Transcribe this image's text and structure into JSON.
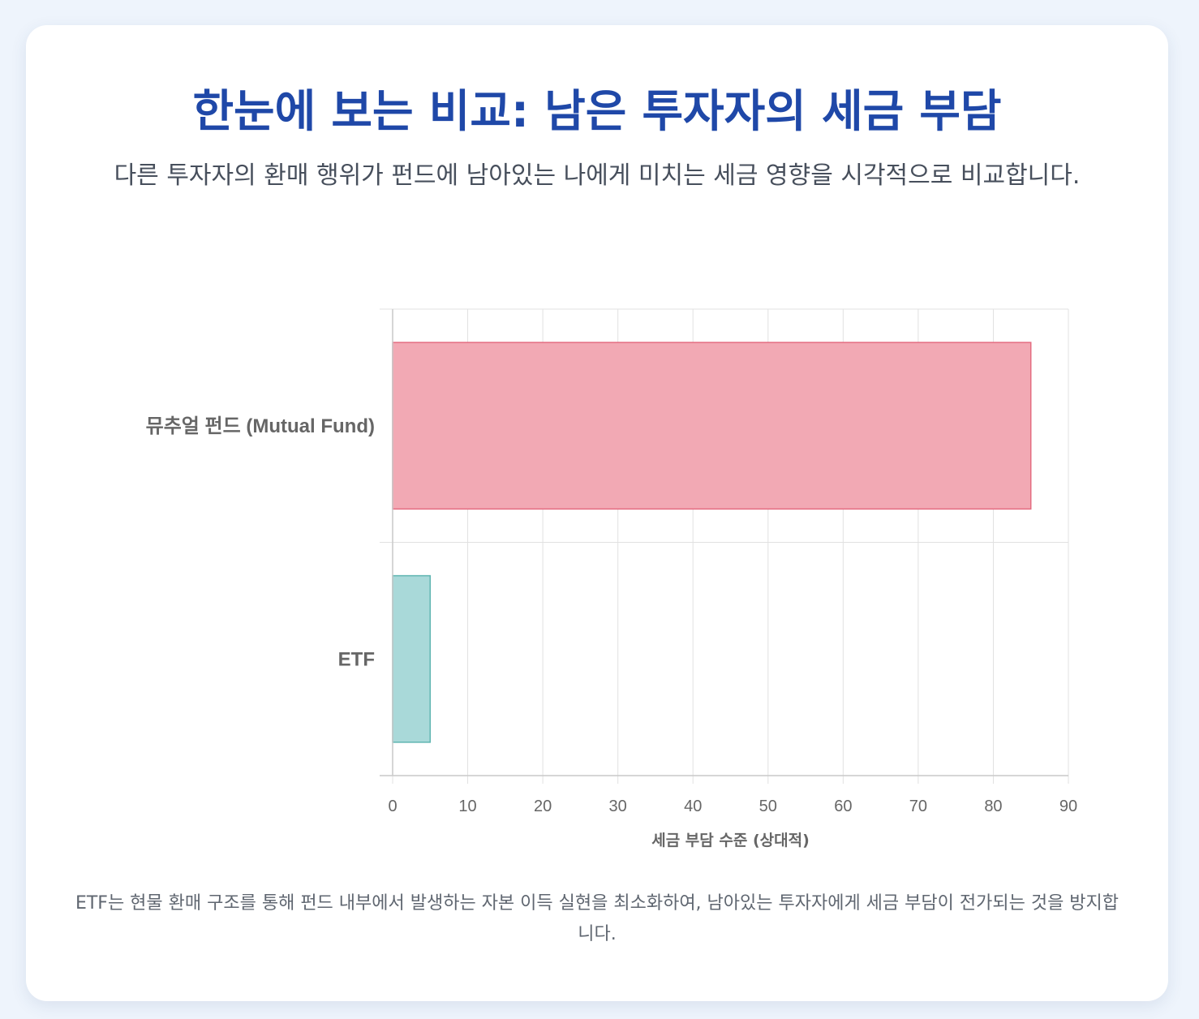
{
  "page": {
    "title": "한눈에 보는 비교: 남은 투자자의 세금 부담",
    "subtitle": "다른 투자자의 환매 행위가 펀드에 남아있는 나에게 미치는 세금 영향을 시각적으로 비교합니다.",
    "footnote": "ETF는 현물 환매 구조를 통해 펀드 내부에서 발생하는 자본 이득 실현을 최소화하여, 남아있는 투자자에게 세금 부담이 전가되는 것을 방지합니다."
  },
  "chart_data": {
    "type": "bar",
    "orientation": "horizontal",
    "categories": [
      "뮤추얼 펀드 (Mutual Fund)",
      "ETF"
    ],
    "values": [
      85,
      5
    ],
    "xlabel": "세금 부담 수준 (상대적)",
    "xlim": [
      0,
      90
    ],
    "xticks": [
      0,
      10,
      20,
      30,
      40,
      50,
      60,
      70,
      80,
      90
    ],
    "grid": true,
    "bar_colors": [
      "#f2a9b4",
      "#a9d9d9"
    ],
    "bar_border_colors": [
      "#e46c80",
      "#5fb5b1"
    ],
    "grid_color": "#e1e1e1"
  }
}
